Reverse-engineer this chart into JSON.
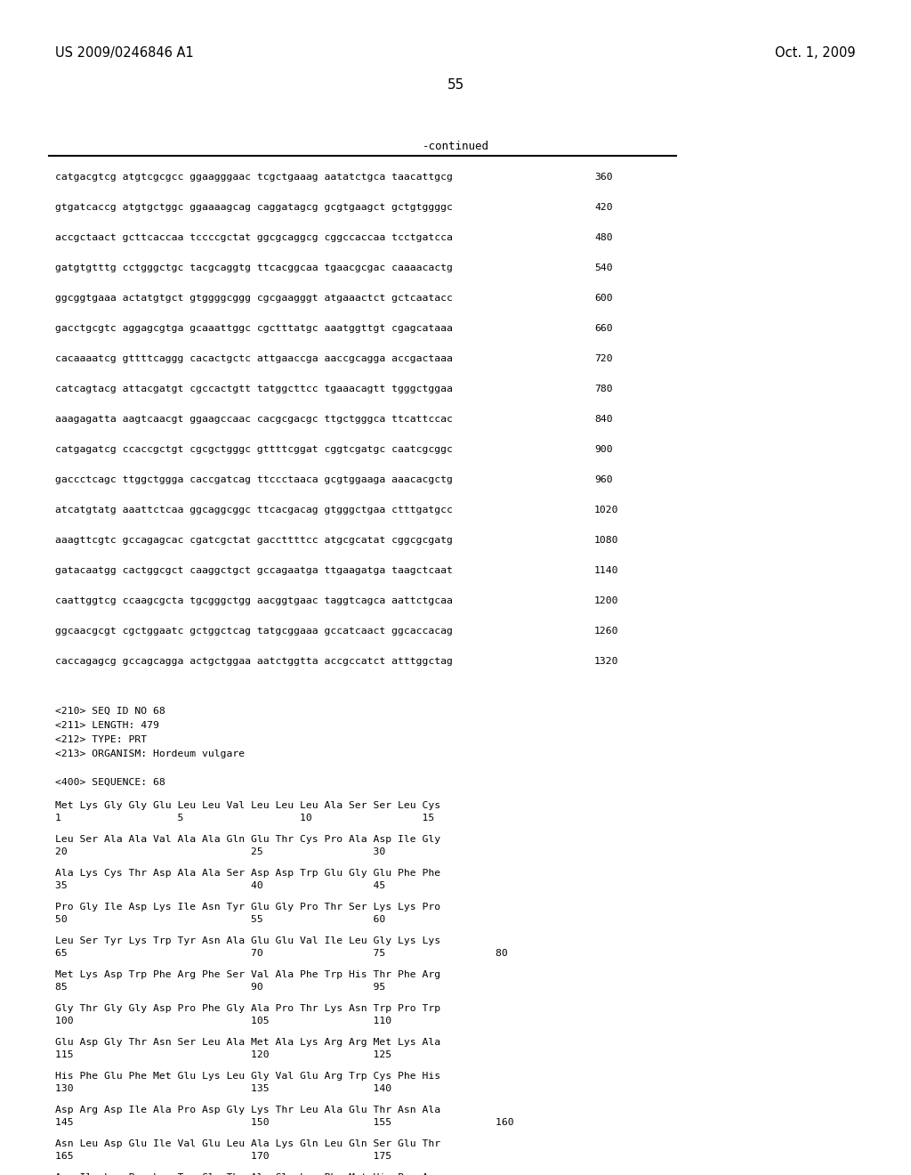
{
  "header_left": "US 2009/0246846 A1",
  "header_right": "Oct. 1, 2009",
  "page_number": "55",
  "continued_label": "-continued",
  "background_color": "#ffffff",
  "text_color": "#000000",
  "dna_lines": [
    [
      "catgacgtcg atgtcgcgcc ggaagggaac tcgctgaaag aatatctgca taacattgcg",
      "360"
    ],
    [
      "gtgatcaccg atgtgctggc ggaaaagcag caggatagcg gcgtgaagct gctgtggggc",
      "420"
    ],
    [
      "accgctaact gcttcaccaa tccccgctat ggcgcaggcg cggccaccaa tcctgatcca",
      "480"
    ],
    [
      "gatgtgtttg cctgggctgc tacgcaggtg ttcacggcaa tgaacgcgac caaaacactg",
      "540"
    ],
    [
      "ggcggtgaaa actatgtgct gtggggcggg cgcgaagggt atgaaactct gctcaatacc",
      "600"
    ],
    [
      "gacctgcgtc aggagcgtga gcaaattggc cgctttatgc aaatggttgt cgagcataaa",
      "660"
    ],
    [
      "cacaaaatcg gttttcaggg cacactgctc attgaaccga aaccgcagga accgactaaa",
      "720"
    ],
    [
      "catcagtacg attacgatgt cgccactgtt tatggcttcc tgaaacagtt tgggctggaa",
      "780"
    ],
    [
      "aaagagatta aagtcaacgt ggaagccaac cacgcgacgc ttgctgggca ttcattccac",
      "840"
    ],
    [
      "catgagatcg ccaccgctgt cgcgctgggc gttttcggat cggtcgatgc caatcgcggc",
      "900"
    ],
    [
      "gaccctcagc ttggctggga caccgatcag ttccctaaca gcgtggaaga aaacacgctg",
      "960"
    ],
    [
      "atcatgtatg aaattctcaa ggcaggcggc ttcacgacag gtgggctgaa ctttgatgcc",
      "1020"
    ],
    [
      "aaagttcgtc gccagagcac cgatcgctat gaccttttcc atgcgcatat cggcgcgatg",
      "1080"
    ],
    [
      "gatacaatgg cactggcgct caaggctgct gccagaatga ttgaagatga taagctcaat",
      "1140"
    ],
    [
      "caattggtcg ccaagcgcta tgcgggctgg aacggtgaac taggtcagca aattctgcaa",
      "1200"
    ],
    [
      "ggcaacgcgt cgctggaatc gctggctcag tatgcggaaa gccatcaact ggcaccacag",
      "1260"
    ],
    [
      "caccagagcg gccagcagga actgctggaa aatctggtta accgccatct atttggctag",
      "1320"
    ]
  ],
  "metadata_lines": [
    "<210> SEQ ID NO 68",
    "<211> LENGTH: 479",
    "<212> TYPE: PRT",
    "<213> ORGANISM: Hordeum vulgare"
  ],
  "sequence_header": "<400> SEQUENCE: 68",
  "protein_blocks": [
    {
      "seq": "Met Lys Gly Gly Glu Leu Leu Val Leu Leu Leu Ala Ser Ser Leu Cys",
      "num": "1                   5                   10                  15"
    },
    {
      "seq": "Leu Ser Ala Ala Val Ala Ala Gln Glu Thr Cys Pro Ala Asp Ile Gly",
      "num": "20                              25                  30"
    },
    {
      "seq": "Ala Lys Cys Thr Asp Ala Ala Ser Asp Asp Trp Glu Gly Glu Phe Phe",
      "num": "35                              40                  45"
    },
    {
      "seq": "Pro Gly Ile Asp Lys Ile Asn Tyr Glu Gly Pro Thr Ser Lys Lys Pro",
      "num": "50                              55                  60"
    },
    {
      "seq": "Leu Ser Tyr Lys Trp Tyr Asn Ala Glu Glu Val Ile Leu Gly Lys Lys",
      "num": "65                              70                  75                  80"
    },
    {
      "seq": "Met Lys Asp Trp Phe Arg Phe Ser Val Ala Phe Trp His Thr Phe Arg",
      "num": "85                              90                  95"
    },
    {
      "seq": "Gly Thr Gly Gly Asp Pro Phe Gly Ala Pro Thr Lys Asn Trp Pro Trp",
      "num": "100                             105                 110"
    },
    {
      "seq": "Glu Asp Gly Thr Asn Ser Leu Ala Met Ala Lys Arg Arg Met Lys Ala",
      "num": "115                             120                 125"
    },
    {
      "seq": "His Phe Glu Phe Met Glu Lys Leu Gly Val Glu Arg Trp Cys Phe His",
      "num": "130                             135                 140"
    },
    {
      "seq": "Asp Arg Asp Ile Ala Pro Asp Gly Lys Thr Leu Ala Glu Thr Asn Ala",
      "num": "145                             150                 155                 160"
    },
    {
      "seq": "Asn Leu Asp Glu Ile Val Glu Leu Ala Lys Gln Leu Gln Ser Glu Thr",
      "num": "165                             170                 175"
    },
    {
      "seq": "Asn Ile Lys Pro Leu Trp Gly Thr Ala Gln Leu Phe Met His Pro Arg",
      "num": ""
    }
  ]
}
